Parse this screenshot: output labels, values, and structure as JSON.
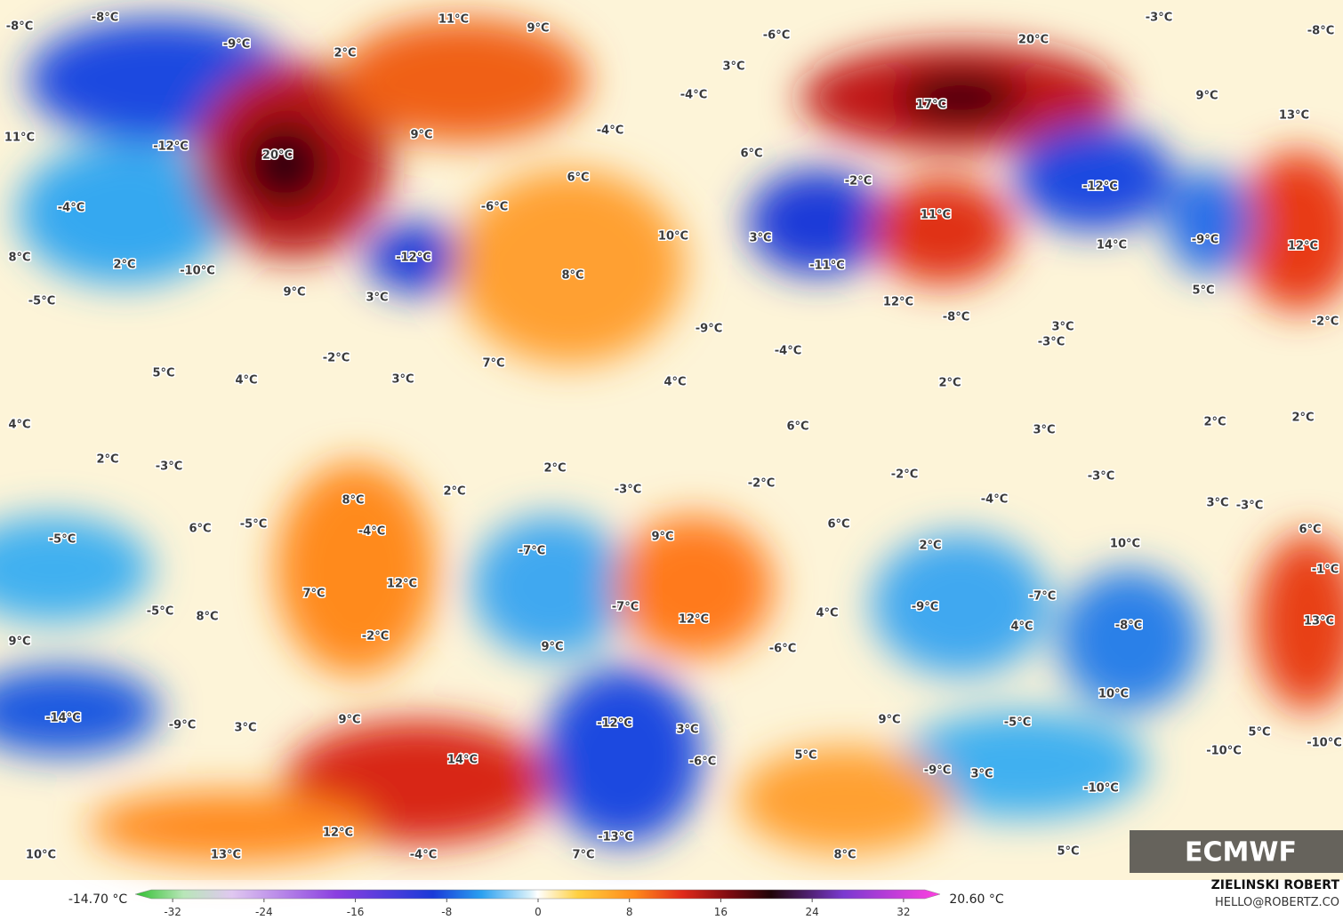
{
  "map": {
    "labels": [
      "-8°C",
      "-8°C",
      "-9°C",
      "11°C",
      "9°C",
      "2°C",
      "-6°C",
      "3°C",
      "-3°C",
      "-8°C",
      "20°C",
      "-4°C",
      "17°C",
      "9°C",
      "13°C",
      "11°C",
      "-12°C",
      "20°C",
      "9°C",
      "-4°C",
      "6°C",
      "6°C",
      "-2°C",
      "-12°C",
      "-4°C",
      "-6°C",
      "11°C",
      "10°C",
      "3°C",
      "14°C",
      "-9°C",
      "12°C",
      "8°C",
      "2°C",
      "-10°C",
      "-12°C",
      "8°C",
      "-11°C",
      "9°C",
      "3°C",
      "-5°C",
      "12°C",
      "5°C",
      "-8°C",
      "-2°C",
      "3°C",
      "-9°C",
      "-3°C",
      "5°C",
      "-2°C",
      "7°C",
      "-4°C",
      "4°C",
      "3°C",
      "4°C",
      "2°C",
      "4°C",
      "2°C",
      "2°C",
      "6°C",
      "3°C",
      "2°C",
      "-3°C",
      "2°C",
      "-2°C",
      "-3°C",
      "2°C",
      "-2°C",
      "-3°C",
      "-4°C",
      "8°C",
      "3°C",
      "-3°C",
      "-5°C",
      "6°C",
      "-5°C",
      "-4°C",
      "6°C",
      "6°C",
      "9°C",
      "-7°C",
      "2°C",
      "10°C",
      "-1°C",
      "12°C",
      "7°C",
      "-7°C",
      "-9°C",
      "-5°C",
      "8°C",
      "-7°C",
      "4°C",
      "12°C",
      "4°C",
      "-8°C",
      "13°C",
      "9°C",
      "-2°C",
      "9°C",
      "-6°C",
      "10°C",
      "-14°C",
      "-9°C",
      "3°C",
      "9°C",
      "9°C",
      "-12°C",
      "3°C",
      "-5°C",
      "5°C",
      "-10°C",
      "-10°C",
      "14°C",
      "-6°C",
      "5°C",
      "-9°C",
      "3°C",
      "-10°C",
      "12°C",
      "-13°C",
      "10°C",
      "13°C",
      "-4°C",
      "7°C",
      "8°C",
      "5°C"
    ],
    "logo": "ECMWF"
  },
  "colorbar": {
    "min_label": "-14.70 °C",
    "max_label": "20.60 °C",
    "ticks": [
      -32,
      -24,
      -16,
      -8,
      0,
      8,
      16,
      24,
      32
    ]
  },
  "credits": {
    "author": "ZIELINSKI ROBERT",
    "email": "HELLO@ROBERTZ.CO"
  }
}
